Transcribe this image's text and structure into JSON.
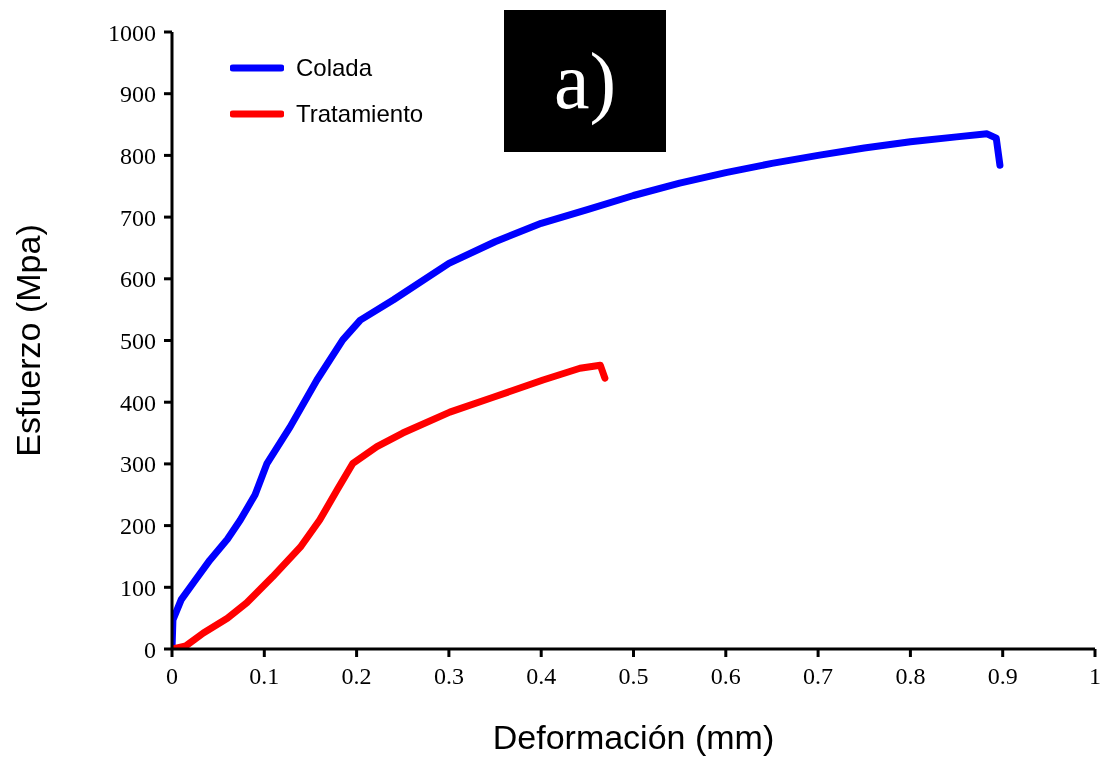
{
  "chart_data": {
    "type": "line",
    "xlabel": "Deformación (mm)",
    "ylabel": "Esfuerzo (Mpa)",
    "annotations": [
      "a)"
    ],
    "xlim": [
      0,
      1
    ],
    "xticks": [
      0,
      0.1,
      0.2,
      0.3,
      0.4,
      0.5,
      0.6,
      0.7,
      0.8,
      0.9,
      1
    ],
    "ylim": [
      0,
      1000
    ],
    "yticks": [
      0,
      100,
      200,
      300,
      400,
      500,
      600,
      700,
      800,
      900,
      1000
    ],
    "grid": false,
    "legend": "top left",
    "marker": "none",
    "line_style": "solid",
    "series": [
      {
        "name": "Colada",
        "color": "#0000ff",
        "x": [
          0,
          0.001,
          0.01,
          0.023,
          0.041,
          0.06,
          0.074,
          0.09,
          0.103,
          0.128,
          0.157,
          0.185,
          0.204,
          0.24,
          0.3,
          0.35,
          0.4,
          0.45,
          0.5,
          0.55,
          0.6,
          0.65,
          0.7,
          0.75,
          0.8,
          0.85,
          0.883,
          0.893,
          0.897
        ],
        "values": [
          0,
          47,
          80,
          107,
          144,
          178,
          209,
          250,
          301,
          360,
          436,
          501,
          533,
          566,
          625,
          660,
          690,
          712,
          735,
          755,
          772,
          787,
          800,
          812,
          822,
          830,
          835,
          828,
          784
        ]
      },
      {
        "name": "Tratamiento",
        "color": "#ff0000",
        "x": [
          0,
          0.015,
          0.034,
          0.06,
          0.081,
          0.109,
          0.139,
          0.16,
          0.179,
          0.196,
          0.222,
          0.25,
          0.301,
          0.348,
          0.402,
          0.442,
          0.464,
          0.469
        ],
        "values": [
          0,
          5,
          26,
          50,
          75,
          117,
          165,
          209,
          258,
          301,
          328,
          350,
          384,
          408,
          436,
          455,
          460,
          439
        ]
      }
    ]
  }
}
